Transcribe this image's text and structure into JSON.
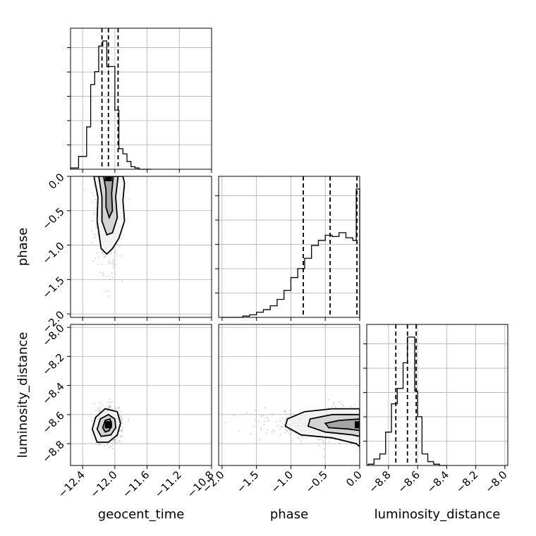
{
  "chart_data": {
    "type": "corner",
    "parameters": [
      "geocent_time",
      "phase",
      "luminosity_distance"
    ],
    "axis_labels": {
      "geocent_time": "geocent_time",
      "phase": "phase",
      "luminosity_distance": "luminosity_distance"
    },
    "ranges": {
      "geocent_time": [
        -12.55,
        -10.8
      ],
      "phase": [
        -2.05,
        0.0
      ],
      "luminosity_distance": [
        -8.95,
        -7.98
      ]
    },
    "ticks": {
      "geocent_time": [
        -12.4,
        -12.0,
        -11.6,
        -11.2,
        -10.8
      ],
      "phase": [
        -2.0,
        -1.5,
        -1.0,
        -0.5,
        0.0
      ],
      "luminosity_distance": [
        -8.8,
        -8.6,
        -8.4,
        -8.2,
        -8.0
      ]
    },
    "tick_labels": {
      "geocent_time": [
        "−12.4",
        "−12.0",
        "−11.6",
        "−11.2",
        "−10.8"
      ],
      "phase": [
        "−2.0",
        "−1.5",
        "−1.0",
        "−0.5",
        "0.0"
      ],
      "luminosity_distance": [
        "−8.8",
        "−8.6",
        "−8.4",
        "−8.2",
        "−8.0"
      ]
    },
    "grid": true,
    "histograms": {
      "geocent_time": {
        "bin_edges": [
          -12.55,
          -12.45,
          -12.35,
          -12.3,
          -12.25,
          -12.2,
          -12.15,
          -12.1,
          -12.05,
          -12.0,
          -11.95,
          -11.9,
          -11.85,
          -11.8,
          -11.75,
          -11.7,
          -11.65,
          -11.55
        ],
        "counts": [
          0.01,
          0.1,
          0.33,
          0.66,
          0.76,
          0.96,
          1.0,
          0.8,
          0.8,
          0.46,
          0.16,
          0.12,
          0.06,
          0.02,
          0.01,
          0.0,
          0.0
        ],
        "quantiles": [
          -12.16,
          -12.08,
          -11.96
        ]
      },
      "phase": {
        "bin_edges": [
          -2.0,
          -1.9,
          -1.8,
          -1.7,
          -1.6,
          -1.5,
          -1.4,
          -1.3,
          -1.2,
          -1.1,
          -1.0,
          -0.9,
          -0.8,
          -0.7,
          -0.6,
          -0.5,
          -0.4,
          -0.3,
          -0.2,
          -0.1,
          -0.05,
          0.0
        ],
        "counts": [
          0.0,
          0.0,
          0.0,
          0.01,
          0.02,
          0.04,
          0.06,
          0.09,
          0.14,
          0.21,
          0.31,
          0.38,
          0.46,
          0.56,
          0.6,
          0.64,
          0.63,
          0.66,
          0.62,
          0.6,
          1.0
        ],
        "quantiles": [
          -0.82,
          -0.43,
          -0.04
        ]
      },
      "luminosity_distance": {
        "bin_edges": [
          -8.94,
          -8.9,
          -8.86,
          -8.82,
          -8.78,
          -8.74,
          -8.7,
          -8.67,
          -8.65,
          -8.62,
          -8.6,
          -8.57,
          -8.53,
          -8.49,
          -8.45,
          -8.4
        ],
        "counts": [
          0.01,
          0.05,
          0.09,
          0.26,
          0.48,
          0.6,
          0.8,
          1.0,
          1.0,
          0.58,
          0.38,
          0.09,
          0.03,
          0.01,
          0.0
        ],
        "quantiles": [
          -8.75,
          -8.67,
          -8.61
        ]
      }
    },
    "pairs": [
      {
        "x": "geocent_time",
        "y": "phase",
        "contours": [
          [
            [
              -12.26,
              0.0
            ],
            [
              -12.21,
              -0.3
            ],
            [
              -12.22,
              -0.65
            ],
            [
              -12.17,
              -1.05
            ],
            [
              -12.1,
              -1.13
            ],
            [
              -12.03,
              -1.05
            ],
            [
              -11.95,
              -0.9
            ],
            [
              -11.88,
              -0.65
            ],
            [
              -11.9,
              -0.35
            ],
            [
              -11.88,
              -0.1
            ],
            [
              -11.9,
              0.0
            ]
          ],
          [
            [
              -12.2,
              0.0
            ],
            [
              -12.16,
              -0.3
            ],
            [
              -12.16,
              -0.65
            ],
            [
              -12.1,
              -0.85
            ],
            [
              -12.03,
              -0.82
            ],
            [
              -11.97,
              -0.6
            ],
            [
              -11.99,
              -0.3
            ],
            [
              -11.96,
              0.0
            ]
          ],
          [
            [
              -12.14,
              0.0
            ],
            [
              -12.11,
              -0.2
            ],
            [
              -12.11,
              -0.45
            ],
            [
              -12.07,
              -0.6
            ],
            [
              -12.03,
              -0.5
            ],
            [
              -12.04,
              -0.25
            ],
            [
              -12.02,
              0.0
            ]
          ]
        ],
        "peak": [
          -12.08,
          -0.02
        ]
      },
      {
        "x": "geocent_time",
        "y": "luminosity_distance",
        "contours": [
          [
            [
              -12.28,
              -8.7
            ],
            [
              -12.24,
              -8.62
            ],
            [
              -12.12,
              -8.56
            ],
            [
              -11.97,
              -8.58
            ],
            [
              -11.93,
              -8.66
            ],
            [
              -11.97,
              -8.74
            ],
            [
              -12.08,
              -8.79
            ],
            [
              -12.22,
              -8.79
            ]
          ],
          [
            [
              -12.22,
              -8.7
            ],
            [
              -12.18,
              -8.63
            ],
            [
              -12.08,
              -8.6
            ],
            [
              -12.0,
              -8.63
            ],
            [
              -11.99,
              -8.69
            ],
            [
              -12.05,
              -8.74
            ],
            [
              -12.17,
              -8.75
            ]
          ],
          [
            [
              -12.15,
              -8.69
            ],
            [
              -12.12,
              -8.64
            ],
            [
              -12.06,
              -8.63
            ],
            [
              -12.04,
              -8.67
            ],
            [
              -12.07,
              -8.71
            ],
            [
              -12.12,
              -8.72
            ]
          ]
        ],
        "peak": [
          -12.08,
          -8.67
        ]
      },
      {
        "x": "phase",
        "y": "luminosity_distance",
        "contours": [
          [
            [
              0.0,
              -8.56
            ],
            [
              -0.4,
              -8.56
            ],
            [
              -0.8,
              -8.58
            ],
            [
              -1.05,
              -8.63
            ],
            [
              -1.08,
              -8.68
            ],
            [
              -0.85,
              -8.74
            ],
            [
              -0.4,
              -8.76
            ],
            [
              -0.05,
              -8.8
            ],
            [
              0.0,
              -8.82
            ]
          ],
          [
            [
              0.0,
              -8.6
            ],
            [
              -0.4,
              -8.6
            ],
            [
              -0.72,
              -8.63
            ],
            [
              -0.75,
              -8.68
            ],
            [
              -0.5,
              -8.72
            ],
            [
              -0.1,
              -8.74
            ],
            [
              0.0,
              -8.75
            ]
          ],
          [
            [
              0.0,
              -8.63
            ],
            [
              -0.3,
              -8.64
            ],
            [
              -0.5,
              -8.66
            ],
            [
              -0.45,
              -8.69
            ],
            [
              -0.15,
              -8.7
            ],
            [
              0.0,
              -8.71
            ]
          ]
        ],
        "peak": [
          -0.02,
          -8.67
        ]
      }
    ]
  }
}
